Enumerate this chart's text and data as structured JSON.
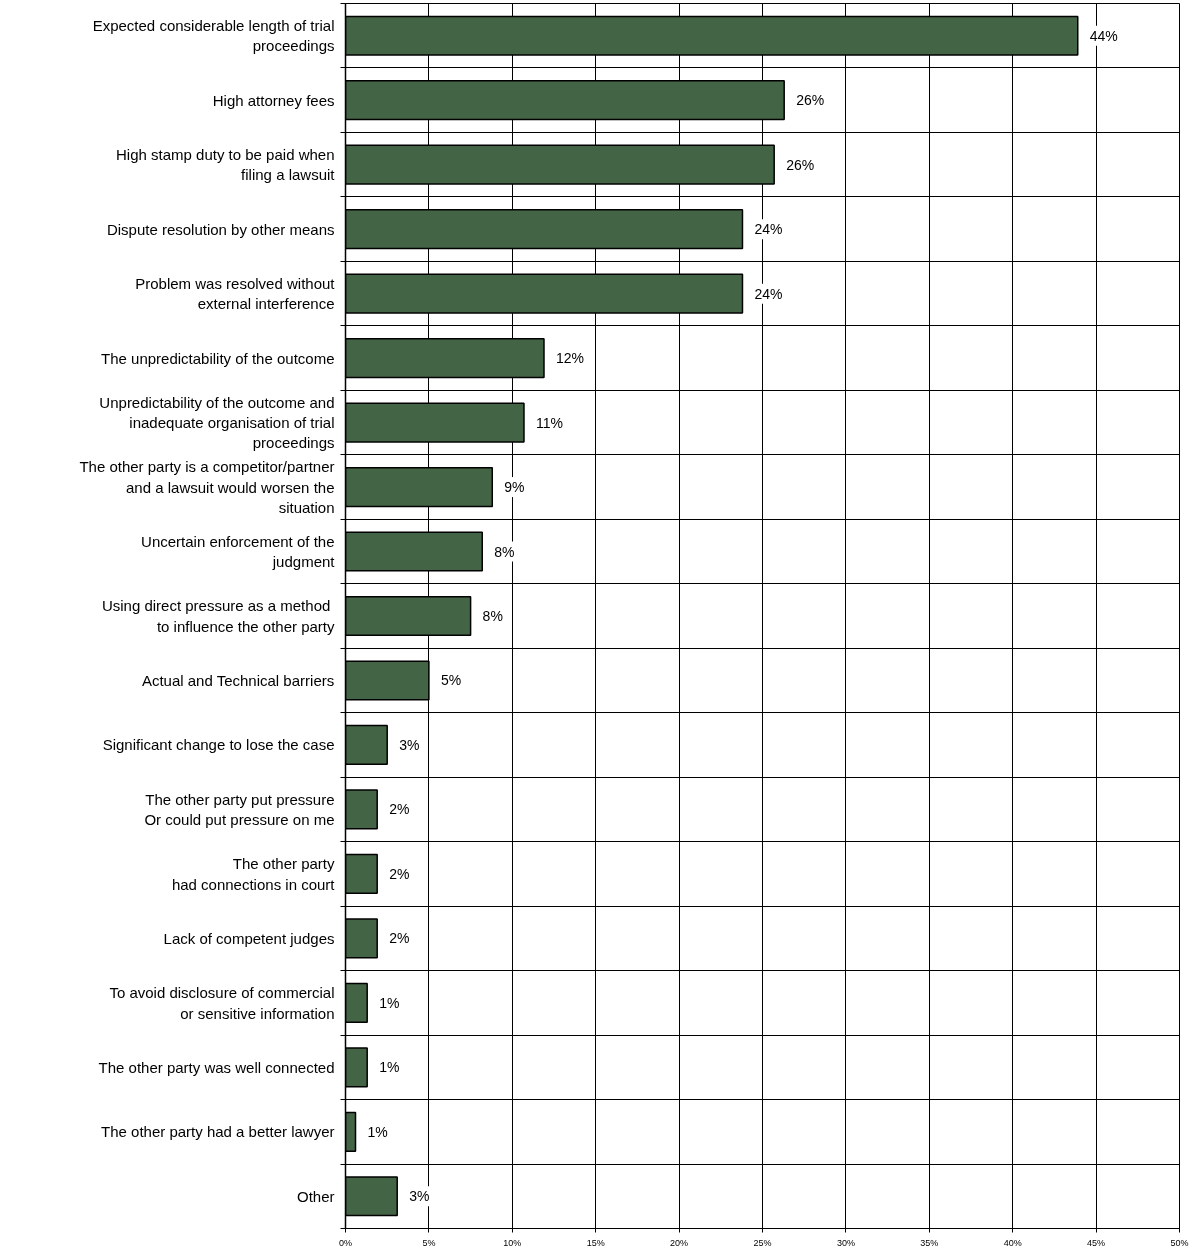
{
  "chart_data": {
    "type": "bar",
    "orientation": "horizontal",
    "categories": [
      "Expected considerable length of trial\nproceedings",
      "High attorney fees",
      "High stamp duty to be paid when\nfiling a lawsuit",
      "Dispute resolution by other means",
      "Problem was resolved without\nexternal interference",
      "The unpredictability of the outcome",
      "Unpredictability of the outcome and\ninadequate organisation of trial\nproceedings",
      "The other party is a competitor/partner\nand a lawsuit would worsen the\nsituation",
      "Uncertain enforcement of the\njudgment",
      " Using direct pressure as a method\nto influence the other party",
      "Actual and Technical barriers",
      "Significant change to lose the case",
      "The other party put pressure\nOr could put pressure on me",
      "The other party\nhad connections in court",
      "Lack of competent judges",
      "To avoid disclosure of commercial\nor sensitive information",
      "The other party was well connected",
      "The other party had a better lawyer",
      "Other"
    ],
    "values": [
      43.9,
      26.3,
      25.7,
      23.8,
      23.8,
      11.9,
      10.7,
      8.8,
      8.2,
      7.5,
      5.0,
      2.5,
      1.9,
      1.9,
      1.9,
      1.3,
      1.3,
      0.6,
      3.1
    ],
    "value_labels": [
      "44%",
      "26%",
      "26%",
      "24%",
      "24%",
      "12%",
      "11%",
      "9%",
      "8%",
      "8%",
      "5%",
      "3%",
      "2%",
      "2%",
      "2%",
      "1%",
      "1%",
      "1%",
      "3%"
    ],
    "color": "#446446",
    "xlim": [
      0,
      50
    ],
    "xticks": [
      {
        "value": 0,
        "label": "0%"
      },
      {
        "value": 5,
        "label": "5%"
      },
      {
        "value": 10,
        "label": "10%"
      },
      {
        "value": 15,
        "label": "15%"
      },
      {
        "value": 20,
        "label": "20%"
      },
      {
        "value": 25,
        "label": "25%"
      },
      {
        "value": 30,
        "label": "30%"
      },
      {
        "value": 35,
        "label": "35%"
      },
      {
        "value": 40,
        "label": "40%"
      },
      {
        "value": 45,
        "label": "45%"
      },
      {
        "value": 50,
        "label": "50%"
      }
    ],
    "grid": true
  }
}
